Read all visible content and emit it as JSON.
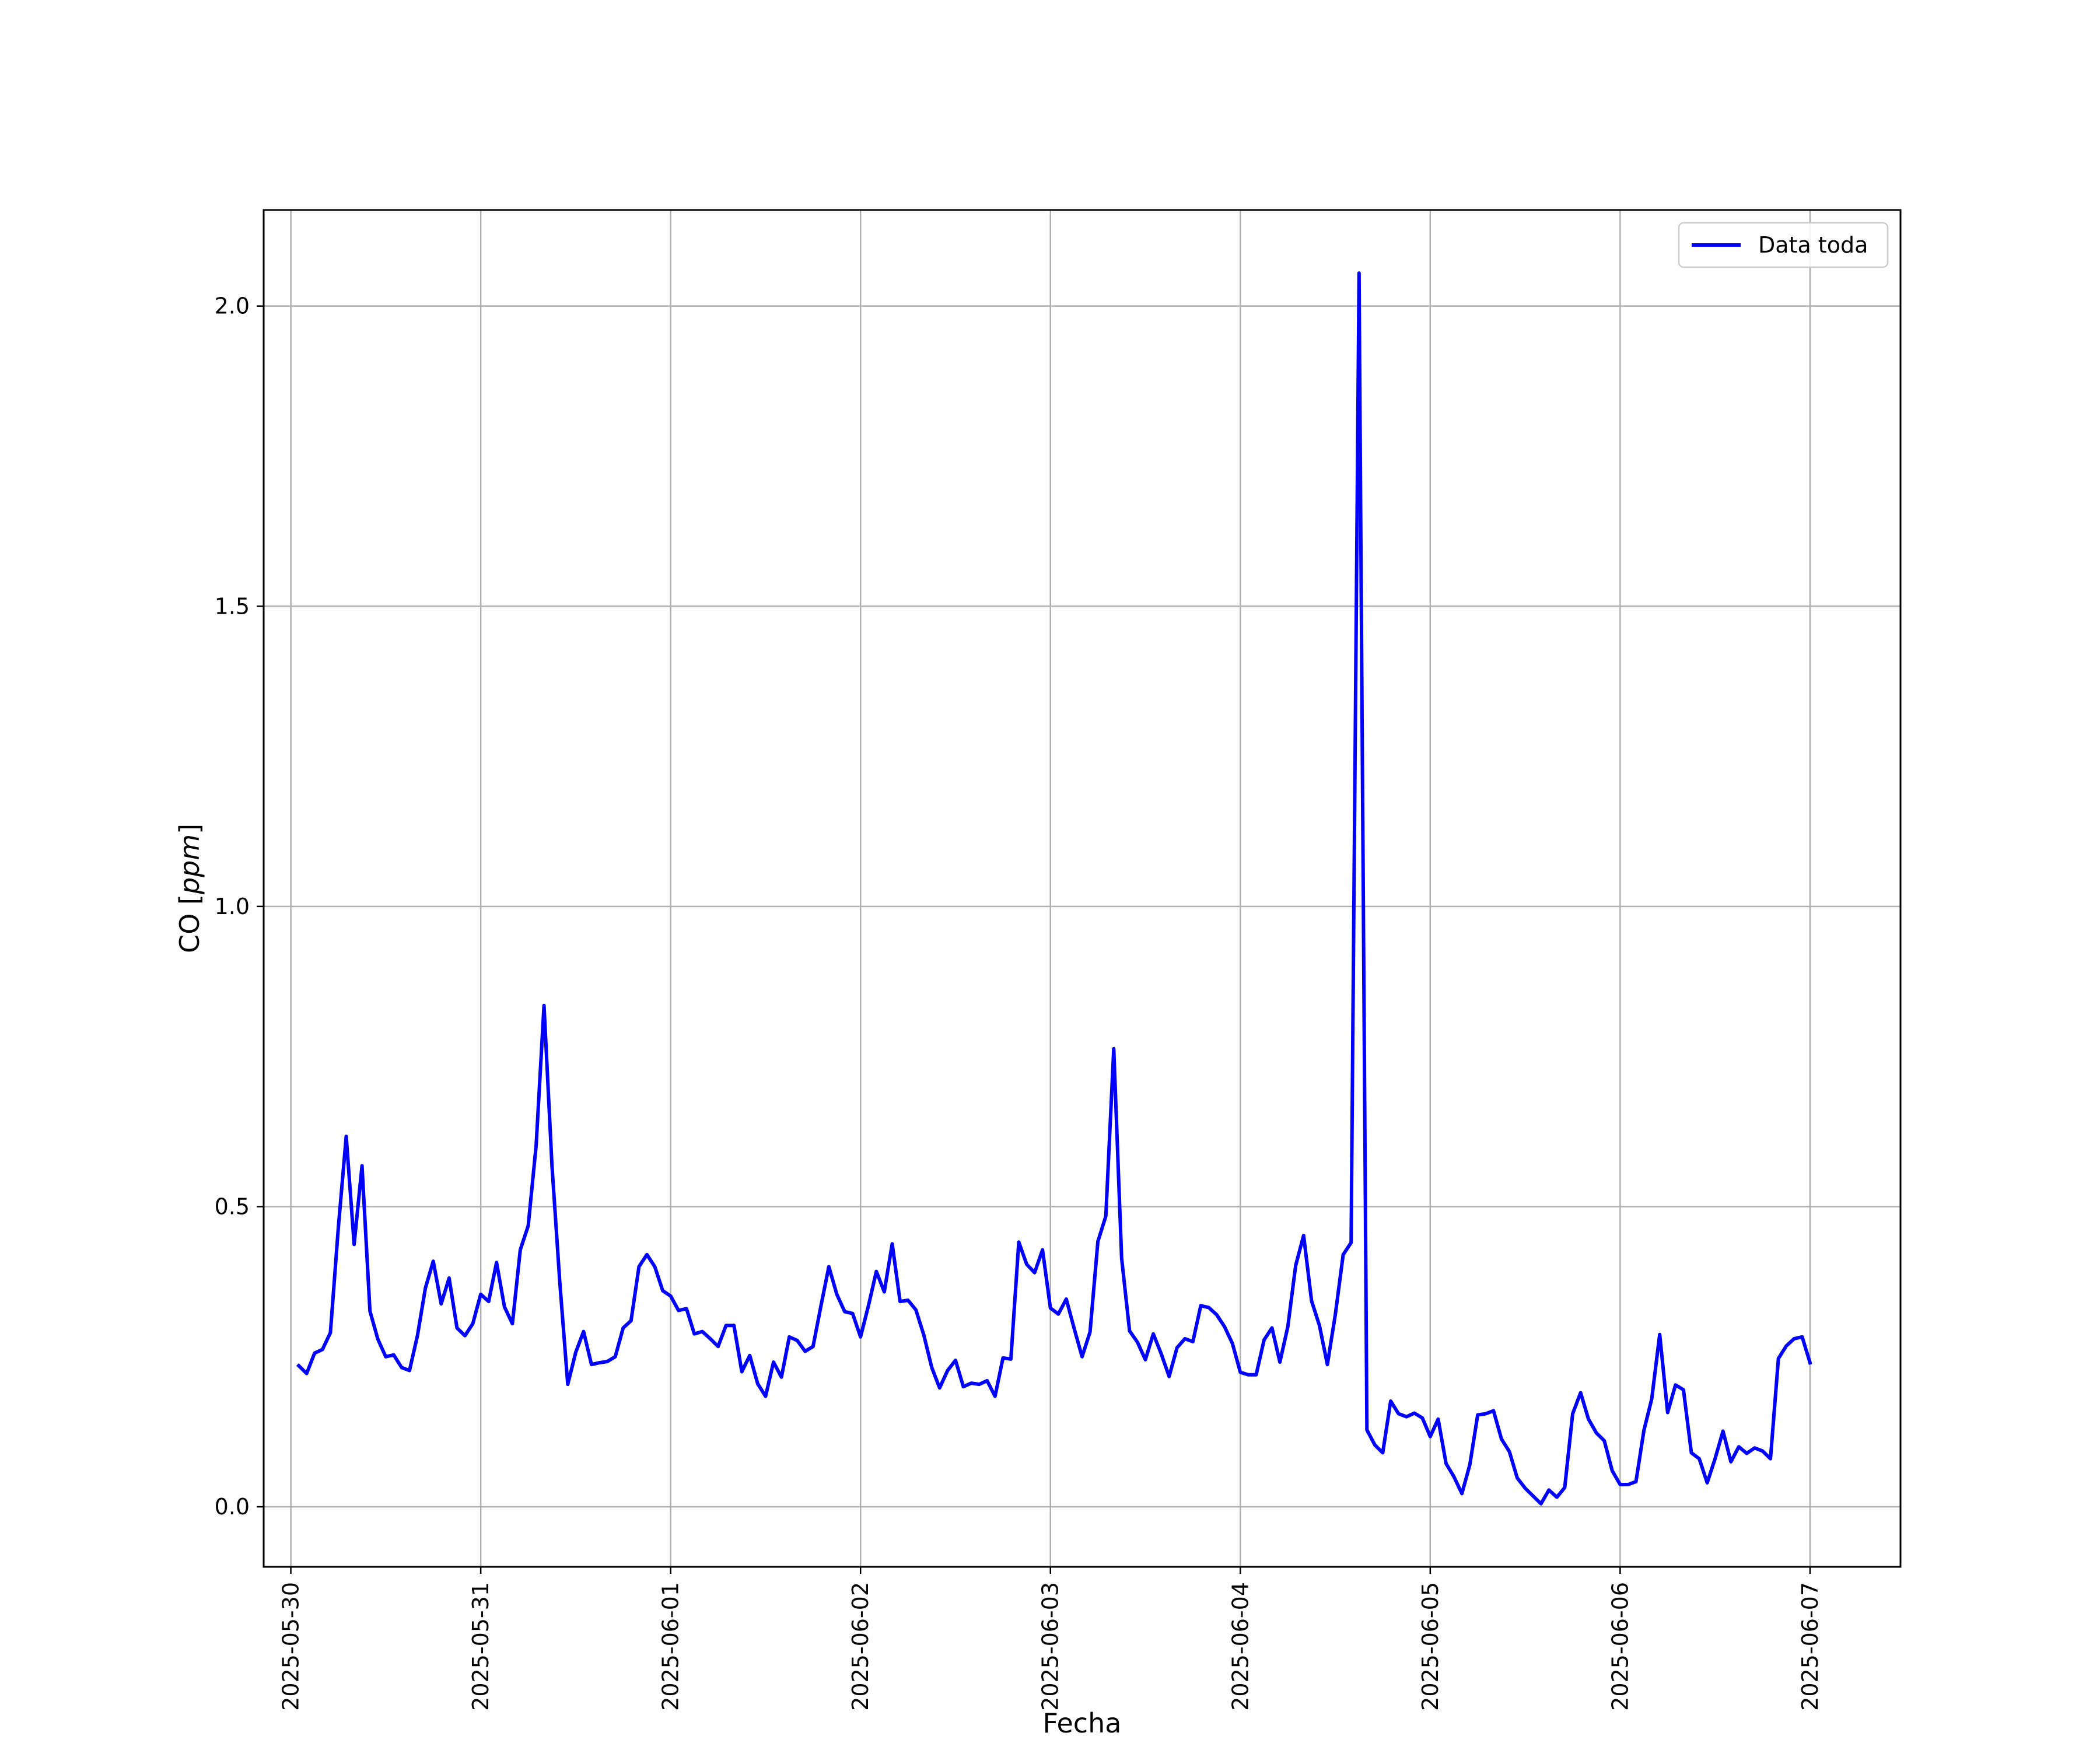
{
  "chart_data": {
    "type": "line",
    "xlabel": "Fecha",
    "ylabel": "CO [ppm]",
    "ylabel_parts": {
      "prefix": "CO [",
      "unit": "ppm",
      "suffix": "]"
    },
    "x_ticks": [
      "2025-05-30",
      "2025-05-31",
      "2025-06-01",
      "2025-06-02",
      "2025-06-03",
      "2025-06-04",
      "2025-06-05",
      "2025-06-06",
      "2025-06-07"
    ],
    "y_ticks": [
      "0.0",
      "0.5",
      "1.0",
      "1.5",
      "2.0"
    ],
    "xlim": [
      "2025-05-29T20:34",
      "2025-06-07T11:26"
    ],
    "ylim": [
      -0.1,
      2.16
    ],
    "grid": true,
    "legend": {
      "position": "top-right",
      "entries": [
        "Data toda"
      ]
    },
    "series": [
      {
        "name": "Data toda",
        "color": "#0000ff",
        "x": [
          "2025-05-30T01:00",
          "2025-05-30T02:00",
          "2025-05-30T03:00",
          "2025-05-30T04:00",
          "2025-05-30T05:00",
          "2025-05-30T06:00",
          "2025-05-30T07:00",
          "2025-05-30T08:00",
          "2025-05-30T09:00",
          "2025-05-30T10:00",
          "2025-05-30T11:00",
          "2025-05-30T12:00",
          "2025-05-30T13:00",
          "2025-05-30T14:00",
          "2025-05-30T15:00",
          "2025-05-30T16:00",
          "2025-05-30T17:00",
          "2025-05-30T18:00",
          "2025-05-30T19:00",
          "2025-05-30T20:00",
          "2025-05-30T21:00",
          "2025-05-30T22:00",
          "2025-05-30T23:00",
          "2025-05-31T00:00",
          "2025-05-31T01:00",
          "2025-05-31T02:00",
          "2025-05-31T03:00",
          "2025-05-31T04:00",
          "2025-05-31T05:00",
          "2025-05-31T06:00",
          "2025-05-31T07:00",
          "2025-05-31T08:00",
          "2025-05-31T09:00",
          "2025-05-31T10:00",
          "2025-05-31T11:00",
          "2025-05-31T12:00",
          "2025-05-31T13:00",
          "2025-05-31T14:00",
          "2025-05-31T15:00",
          "2025-05-31T16:00",
          "2025-05-31T17:00",
          "2025-05-31T18:00",
          "2025-05-31T19:00",
          "2025-05-31T20:00",
          "2025-05-31T21:00",
          "2025-05-31T22:00",
          "2025-05-31T23:00",
          "2025-06-01T00:00",
          "2025-06-01T01:00",
          "2025-06-01T02:00",
          "2025-06-01T03:00",
          "2025-06-01T04:00",
          "2025-06-01T05:00",
          "2025-06-01T06:00",
          "2025-06-01T07:00",
          "2025-06-01T08:00",
          "2025-06-01T09:00",
          "2025-06-01T10:00",
          "2025-06-01T11:00",
          "2025-06-01T12:00",
          "2025-06-01T13:00",
          "2025-06-01T14:00",
          "2025-06-01T15:00",
          "2025-06-01T16:00",
          "2025-06-01T17:00",
          "2025-06-01T18:00",
          "2025-06-01T19:00",
          "2025-06-01T20:00",
          "2025-06-01T21:00",
          "2025-06-01T22:00",
          "2025-06-01T23:00",
          "2025-06-02T00:00",
          "2025-06-02T01:00",
          "2025-06-02T02:00",
          "2025-06-02T03:00",
          "2025-06-02T04:00",
          "2025-06-02T05:00",
          "2025-06-02T06:00",
          "2025-06-02T07:00",
          "2025-06-02T08:00",
          "2025-06-02T09:00",
          "2025-06-02T10:00",
          "2025-06-02T11:00",
          "2025-06-02T12:00",
          "2025-06-02T13:00",
          "2025-06-02T14:00",
          "2025-06-02T15:00",
          "2025-06-02T16:00",
          "2025-06-02T17:00",
          "2025-06-02T18:00",
          "2025-06-02T19:00",
          "2025-06-02T20:00",
          "2025-06-02T21:00",
          "2025-06-02T22:00",
          "2025-06-02T23:00",
          "2025-06-03T00:00",
          "2025-06-03T01:00",
          "2025-06-03T02:00",
          "2025-06-03T03:00",
          "2025-06-03T04:00",
          "2025-06-03T05:00",
          "2025-06-03T06:00",
          "2025-06-03T07:00",
          "2025-06-03T08:00",
          "2025-06-03T09:00",
          "2025-06-03T10:00",
          "2025-06-03T11:00",
          "2025-06-03T12:00",
          "2025-06-03T13:00",
          "2025-06-03T14:00",
          "2025-06-03T15:00",
          "2025-06-03T16:00",
          "2025-06-03T17:00",
          "2025-06-03T18:00",
          "2025-06-03T19:00",
          "2025-06-03T20:00",
          "2025-06-03T21:00",
          "2025-06-03T22:00",
          "2025-06-03T23:00",
          "2025-06-04T00:00",
          "2025-06-04T01:00",
          "2025-06-04T02:00",
          "2025-06-04T03:00",
          "2025-06-04T04:00",
          "2025-06-04T05:00",
          "2025-06-04T06:00",
          "2025-06-04T07:00",
          "2025-06-04T08:00",
          "2025-06-04T09:00",
          "2025-06-04T10:00",
          "2025-06-04T11:00",
          "2025-06-04T12:00",
          "2025-06-04T13:00",
          "2025-06-04T14:00",
          "2025-06-04T15:00",
          "2025-06-04T16:00",
          "2025-06-04T17:00",
          "2025-06-04T18:00",
          "2025-06-04T19:00",
          "2025-06-04T20:00",
          "2025-06-04T21:00",
          "2025-06-04T22:00",
          "2025-06-04T23:00",
          "2025-06-05T00:00",
          "2025-06-05T01:00",
          "2025-06-05T02:00",
          "2025-06-05T03:00",
          "2025-06-05T04:00",
          "2025-06-05T05:00",
          "2025-06-05T06:00",
          "2025-06-05T07:00",
          "2025-06-05T08:00",
          "2025-06-05T09:00",
          "2025-06-05T10:00",
          "2025-06-05T11:00",
          "2025-06-05T12:00",
          "2025-06-05T13:00",
          "2025-06-05T14:00",
          "2025-06-05T15:00",
          "2025-06-05T16:00",
          "2025-06-05T17:00",
          "2025-06-05T18:00",
          "2025-06-05T19:00",
          "2025-06-05T20:00",
          "2025-06-05T21:00",
          "2025-06-05T22:00",
          "2025-06-05T23:00",
          "2025-06-06T00:00",
          "2025-06-06T01:00",
          "2025-06-06T02:00",
          "2025-06-06T03:00",
          "2025-06-06T04:00",
          "2025-06-06T05:00",
          "2025-06-06T06:00",
          "2025-06-06T07:00",
          "2025-06-06T08:00",
          "2025-06-06T09:00",
          "2025-06-06T10:00",
          "2025-06-06T11:00",
          "2025-06-06T12:00",
          "2025-06-06T13:00",
          "2025-06-06T14:00",
          "2025-06-06T15:00",
          "2025-06-06T16:00",
          "2025-06-06T17:00",
          "2025-06-06T18:00",
          "2025-06-06T19:00",
          "2025-06-06T20:00",
          "2025-06-06T21:00",
          "2025-06-06T22:00",
          "2025-06-06T23:00",
          "2025-06-07T00:00"
        ],
        "y": [
          0.235,
          0.222,
          0.256,
          0.262,
          0.29,
          0.465,
          0.617,
          0.437,
          0.568,
          0.326,
          0.279,
          0.25,
          0.253,
          0.232,
          0.227,
          0.285,
          0.364,
          0.409,
          0.338,
          0.381,
          0.298,
          0.285,
          0.305,
          0.354,
          0.342,
          0.407,
          0.333,
          0.305,
          0.428,
          0.468,
          0.602,
          0.835,
          0.569,
          0.372,
          0.204,
          0.257,
          0.292,
          0.237,
          0.24,
          0.242,
          0.25,
          0.298,
          0.31,
          0.4,
          0.42,
          0.4,
          0.36,
          0.351,
          0.327,
          0.33,
          0.288,
          0.292,
          0.28,
          0.267,
          0.302,
          0.302,
          0.225,
          0.252,
          0.205,
          0.184,
          0.241,
          0.216,
          0.283,
          0.277,
          0.259,
          0.267,
          0.335,
          0.4,
          0.354,
          0.325,
          0.322,
          0.283,
          0.335,
          0.392,
          0.358,
          0.438,
          0.342,
          0.344,
          0.328,
          0.286,
          0.232,
          0.198,
          0.227,
          0.244,
          0.2,
          0.206,
          0.204,
          0.21,
          0.184,
          0.248,
          0.246,
          0.441,
          0.404,
          0.39,
          0.428,
          0.331,
          0.321,
          0.346,
          0.297,
          0.25,
          0.291,
          0.442,
          0.484,
          0.763,
          0.414,
          0.293,
          0.274,
          0.245,
          0.288,
          0.255,
          0.217,
          0.265,
          0.28,
          0.275,
          0.335,
          0.332,
          0.32,
          0.3,
          0.272,
          0.224,
          0.22,
          0.22,
          0.278,
          0.298,
          0.241,
          0.3,
          0.402,
          0.452,
          0.343,
          0.302,
          0.237,
          0.32,
          0.42,
          0.44,
          2.055,
          0.128,
          0.103,
          0.09,
          0.176,
          0.155,
          0.15,
          0.156,
          0.148,
          0.117,
          0.146,
          0.072,
          0.05,
          0.022,
          0.07,
          0.153,
          0.155,
          0.16,
          0.113,
          0.092,
          0.048,
          0.031,
          0.018,
          0.005,
          0.028,
          0.016,
          0.032,
          0.155,
          0.19,
          0.146,
          0.123,
          0.11,
          0.06,
          0.037,
          0.037,
          0.042,
          0.127,
          0.18,
          0.287,
          0.157,
          0.203,
          0.195,
          0.09,
          0.08,
          0.04,
          0.08,
          0.126,
          0.075,
          0.1,
          0.089,
          0.098,
          0.093,
          0.08,
          0.247,
          0.268,
          0.28,
          0.283,
          0.24
        ]
      }
    ]
  }
}
